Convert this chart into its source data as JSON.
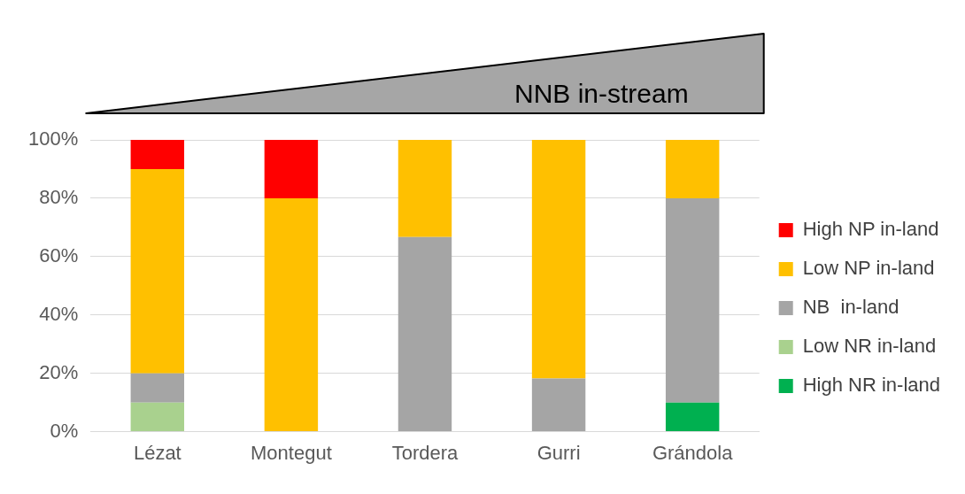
{
  "chart_data": {
    "type": "bar",
    "stacked": true,
    "categories": [
      "Lézat",
      "Montegut",
      "Tordera",
      "Gurri",
      "Grándola"
    ],
    "series": [
      {
        "name": "High NR in-land",
        "color": "#00b050",
        "values": [
          0,
          0,
          0,
          0,
          10
        ]
      },
      {
        "name": "Low NR in-land",
        "color": "#a9d18e",
        "values": [
          10,
          0,
          0,
          0,
          0
        ]
      },
      {
        "name": "NB  in-land",
        "color": "#a5a5a5",
        "values": [
          10,
          0,
          66.7,
          18.2,
          70
        ]
      },
      {
        "name": "Low NP in-land",
        "color": "#ffc000",
        "values": [
          70,
          80,
          33.3,
          81.8,
          20
        ]
      },
      {
        "name": "High NP in-land",
        "color": "#ff0000",
        "values": [
          10,
          20,
          0,
          0,
          0
        ]
      }
    ],
    "ylim": [
      0,
      100
    ],
    "yticks": [
      {
        "value": 0,
        "label": "0%"
      },
      {
        "value": 20,
        "label": "20%"
      },
      {
        "value": 40,
        "label": "40%"
      },
      {
        "value": 60,
        "label": "60%"
      },
      {
        "value": 80,
        "label": "80%"
      },
      {
        "value": 100,
        "label": "100%"
      }
    ],
    "grid": "y",
    "legend": "right",
    "annotations": [
      "NNB in-stream"
    ]
  }
}
